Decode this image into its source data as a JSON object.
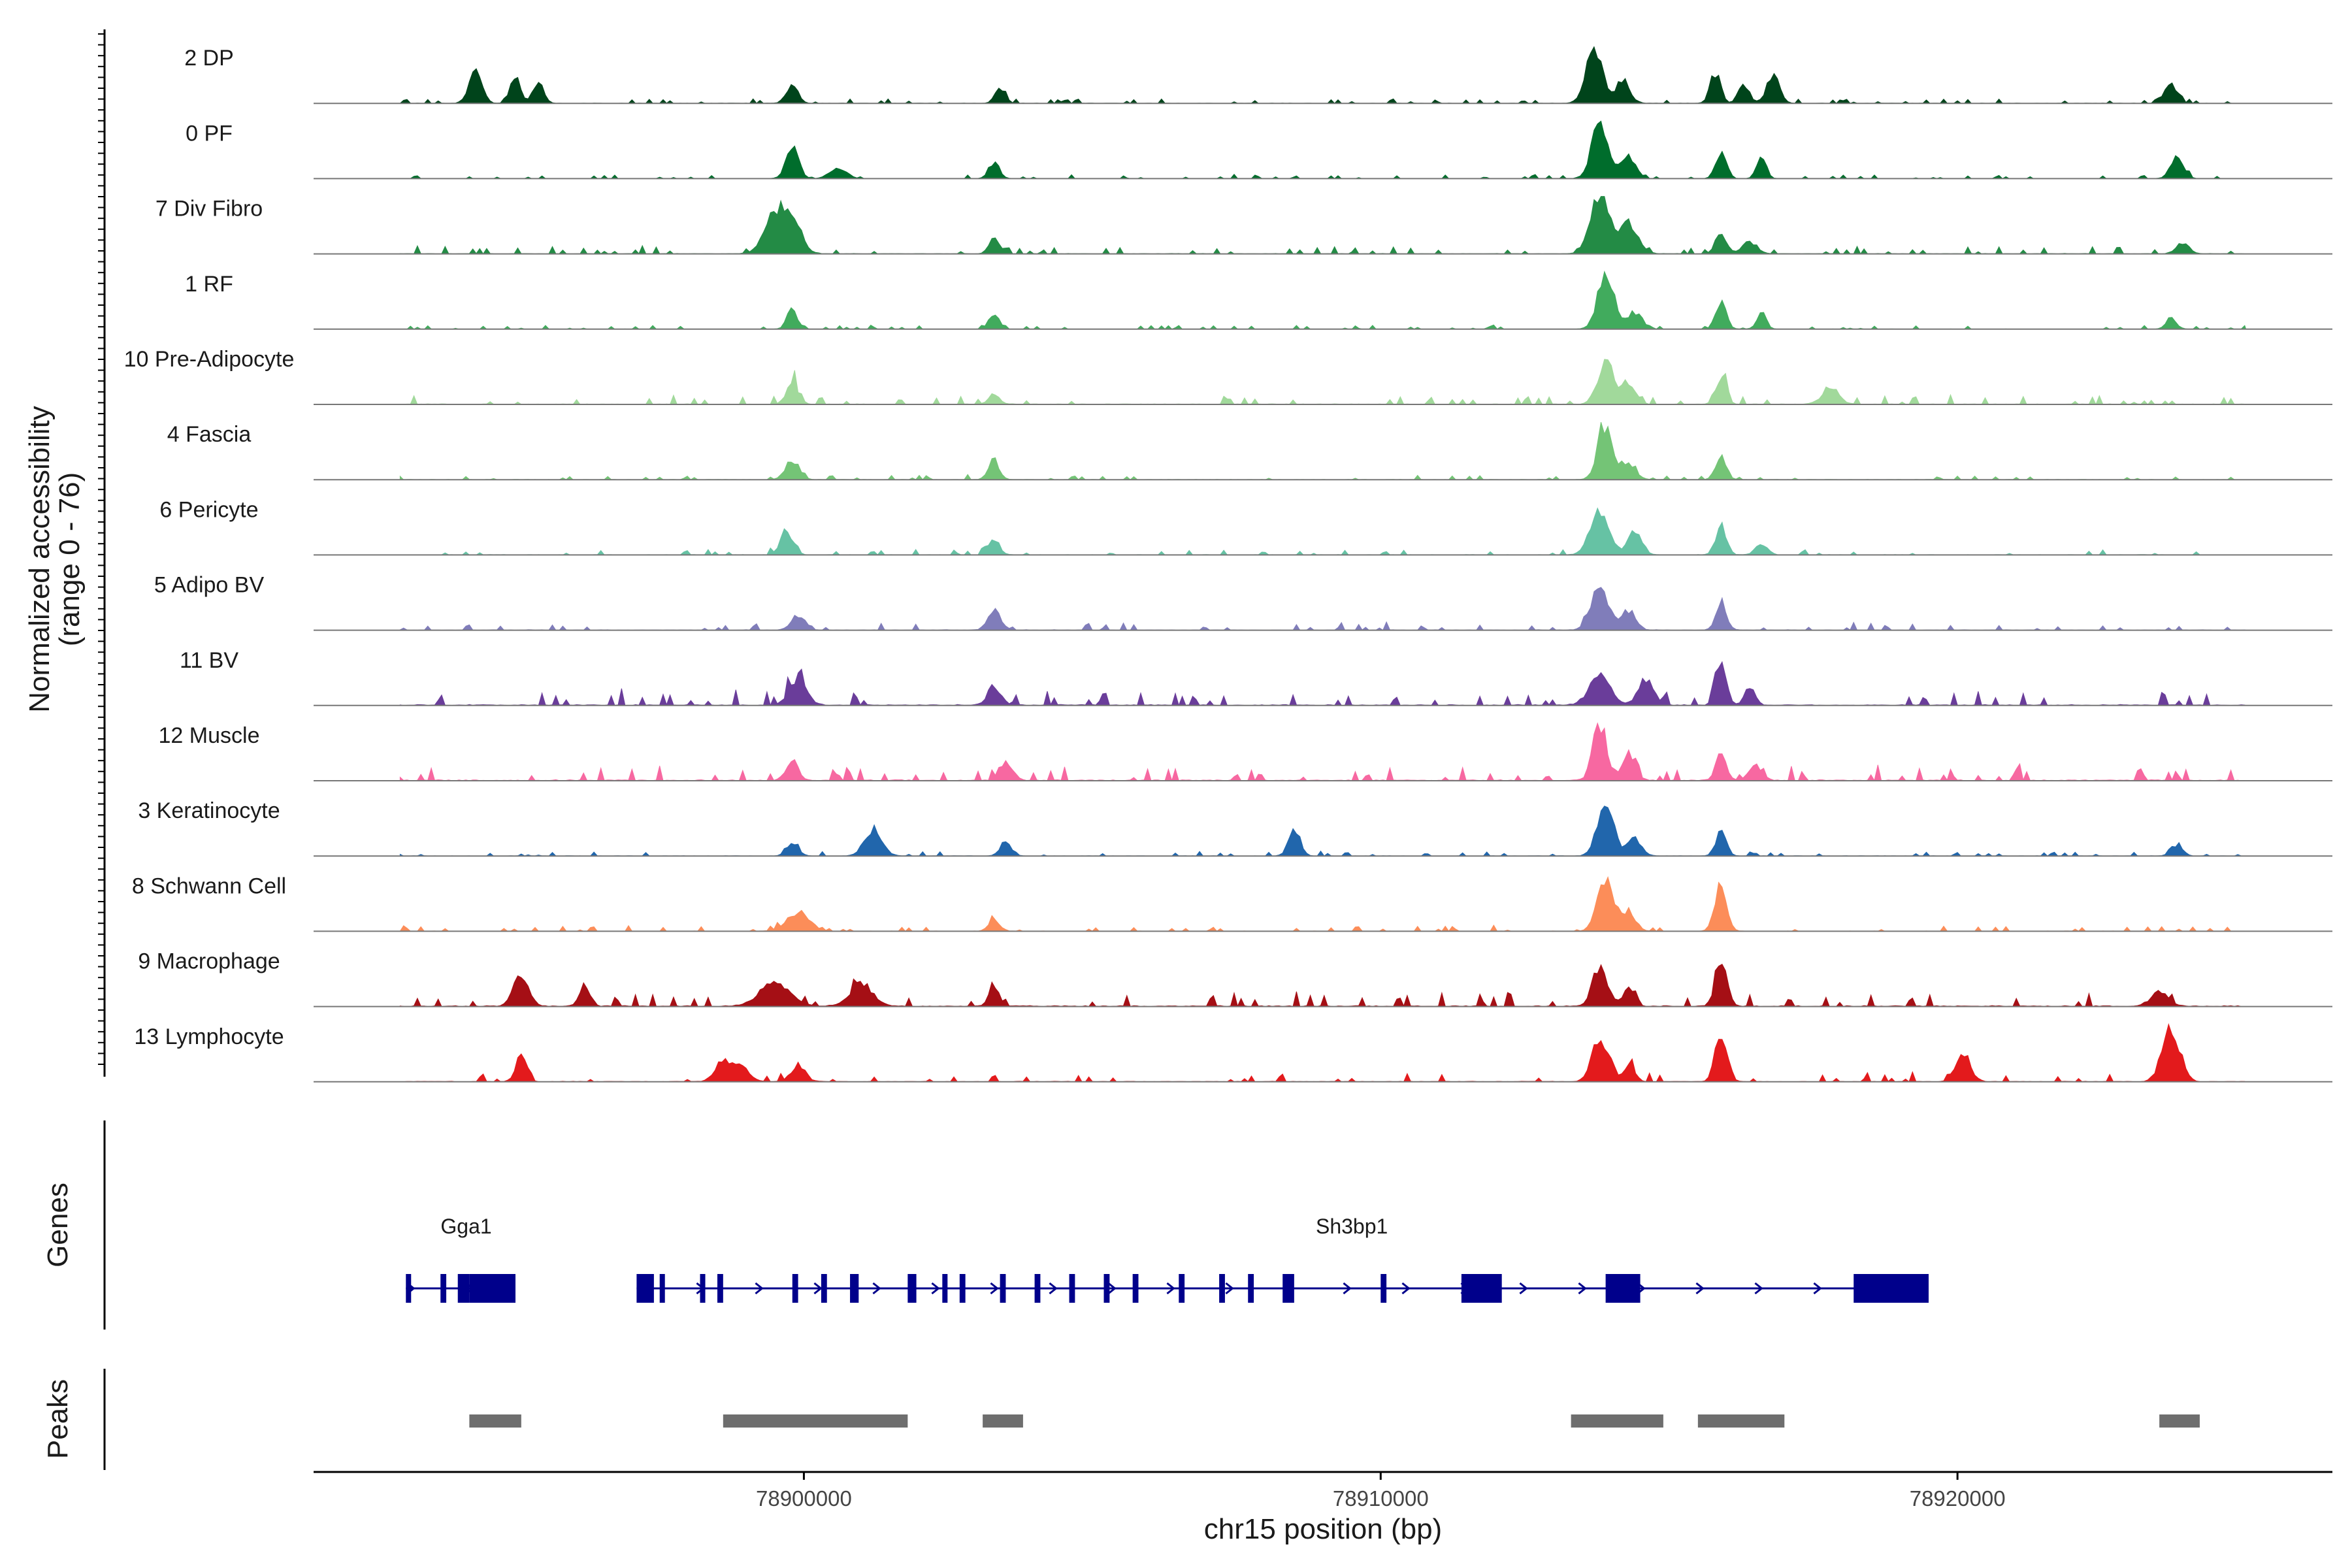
{
  "chart_data": {
    "type": "area",
    "title": "",
    "ylabel_line1": "Normalized accessibility",
    "ylabel_line2": "(range 0 - 76)",
    "ylim": [
      0,
      76
    ],
    "xlabel": "chr15 position (bp)",
    "xlim": [
      78891500,
      78926500
    ],
    "x_ticks": [
      78900000,
      78910000,
      78920000
    ],
    "x_tick_labels": [
      "78900000",
      "78910000",
      "78920000"
    ],
    "data_start": 78893000,
    "data_end": 78925000,
    "tracks": [
      {
        "name": "2 DP",
        "color": "#00441b",
        "peaks": [
          [
            78894300,
            0.6,
            110
          ],
          [
            78895000,
            0.45,
            90
          ],
          [
            78895400,
            0.35,
            90
          ],
          [
            78899800,
            0.35,
            100
          ],
          [
            78903400,
            0.25,
            90
          ],
          [
            78913700,
            1.0,
            140
          ],
          [
            78914200,
            0.4,
            120
          ],
          [
            78915800,
            0.55,
            90
          ],
          [
            78916300,
            0.35,
            90
          ],
          [
            78916800,
            0.5,
            110
          ],
          [
            78923700,
            0.35,
            110
          ]
        ],
        "base": 0.06
      },
      {
        "name": "0 PF",
        "color": "#006d2c",
        "peaks": [
          [
            78899800,
            0.55,
            110
          ],
          [
            78900600,
            0.2,
            140
          ],
          [
            78903300,
            0.3,
            90
          ],
          [
            78913800,
            1.0,
            140
          ],
          [
            78914300,
            0.4,
            120
          ],
          [
            78915900,
            0.5,
            90
          ],
          [
            78916600,
            0.4,
            80
          ],
          [
            78923800,
            0.4,
            110
          ]
        ],
        "base": 0.05
      },
      {
        "name": "7 Div Fibro",
        "color": "#238b45",
        "peaks": [
          [
            78899500,
            0.7,
            180
          ],
          [
            78899800,
            0.55,
            160
          ],
          [
            78903300,
            0.3,
            90
          ],
          [
            78913800,
            1.0,
            160
          ],
          [
            78914300,
            0.55,
            160
          ],
          [
            78915900,
            0.4,
            90
          ],
          [
            78916400,
            0.2,
            130
          ],
          [
            78923900,
            0.2,
            110
          ]
        ],
        "base": 0.1
      },
      {
        "name": "1 RF",
        "color": "#41ab5d",
        "peaks": [
          [
            78899800,
            0.35,
            90
          ],
          [
            78903300,
            0.3,
            90
          ],
          [
            78913900,
            0.95,
            140
          ],
          [
            78914400,
            0.3,
            120
          ],
          [
            78915900,
            0.5,
            90
          ],
          [
            78916600,
            0.3,
            80
          ],
          [
            78923700,
            0.2,
            90
          ]
        ],
        "base": 0.05
      },
      {
        "name": "10 Pre-Adipocyte",
        "color": "#a1d99b",
        "peaks": [
          [
            78899800,
            0.4,
            100
          ],
          [
            78903300,
            0.2,
            90
          ],
          [
            78913900,
            0.75,
            140
          ],
          [
            78914300,
            0.4,
            120
          ],
          [
            78915900,
            0.5,
            90
          ],
          [
            78917800,
            0.25,
            150
          ]
        ],
        "base": 0.12
      },
      {
        "name": "4 Fascia",
        "color": "#74c476",
        "peaks": [
          [
            78899800,
            0.35,
            120
          ],
          [
            78903300,
            0.35,
            90
          ],
          [
            78913900,
            1.0,
            130
          ],
          [
            78914300,
            0.3,
            120
          ],
          [
            78915900,
            0.45,
            90
          ]
        ],
        "base": 0.06
      },
      {
        "name": "6 Pericyte",
        "color": "#66c2a4",
        "peaks": [
          [
            78899700,
            0.4,
            110
          ],
          [
            78903300,
            0.3,
            90
          ],
          [
            78913800,
            0.8,
            160
          ],
          [
            78914400,
            0.4,
            120
          ],
          [
            78915900,
            0.55,
            90
          ],
          [
            78916600,
            0.2,
            100
          ]
        ],
        "base": 0.08
      },
      {
        "name": "5 Adipo BV",
        "color": "#807dba",
        "peaks": [
          [
            78899900,
            0.25,
            120
          ],
          [
            78903300,
            0.35,
            110
          ],
          [
            78913800,
            0.75,
            150
          ],
          [
            78914300,
            0.35,
            120
          ],
          [
            78915900,
            0.5,
            90
          ]
        ],
        "base": 0.1
      },
      {
        "name": "11 BV",
        "color": "#6a3d9a",
        "peaks": [
          [
            78899900,
            0.45,
            150
          ],
          [
            78903300,
            0.35,
            110
          ],
          [
            78913800,
            0.55,
            180
          ],
          [
            78914600,
            0.45,
            130
          ],
          [
            78915900,
            0.8,
            90
          ],
          [
            78916400,
            0.35,
            90
          ]
        ],
        "base": 0.2
      },
      {
        "name": "12 Muscle",
        "color": "#f768a1",
        "peaks": [
          [
            78899800,
            0.4,
            100
          ],
          [
            78903500,
            0.35,
            110
          ],
          [
            78913800,
            1.0,
            120
          ],
          [
            78914300,
            0.5,
            110
          ],
          [
            78915900,
            0.5,
            90
          ],
          [
            78916500,
            0.25,
            120
          ]
        ],
        "base": 0.2
      },
      {
        "name": "3 Keratinocyte",
        "color": "#2166ac",
        "peaks": [
          [
            78899800,
            0.25,
            100
          ],
          [
            78901200,
            0.45,
            150
          ],
          [
            78903500,
            0.25,
            100
          ],
          [
            78908500,
            0.45,
            100
          ],
          [
            78913900,
            0.95,
            140
          ],
          [
            78914400,
            0.3,
            120
          ],
          [
            78915900,
            0.45,
            90
          ],
          [
            78923800,
            0.2,
            100
          ]
        ],
        "base": 0.06
      },
      {
        "name": "8 Schwann Cell",
        "color": "#fc8d59",
        "peaks": [
          [
            78899900,
            0.3,
            200
          ],
          [
            78903300,
            0.2,
            100
          ],
          [
            78913900,
            1.0,
            140
          ],
          [
            78914300,
            0.35,
            120
          ],
          [
            78915900,
            0.9,
            100
          ]
        ],
        "base": 0.07
      },
      {
        "name": "9 Macrophage",
        "color": "#a50f15",
        "peaks": [
          [
            78895100,
            0.55,
            130
          ],
          [
            78896200,
            0.4,
            90
          ],
          [
            78899500,
            0.45,
            250
          ],
          [
            78901000,
            0.4,
            200
          ],
          [
            78903300,
            0.35,
            90
          ],
          [
            78913800,
            0.7,
            130
          ],
          [
            78914300,
            0.35,
            100
          ],
          [
            78915900,
            0.75,
            100
          ],
          [
            78923500,
            0.25,
            150
          ]
        ],
        "base": 0.2
      },
      {
        "name": "13 Lymphocyte",
        "color": "#e31a1c",
        "peaks": [
          [
            78895100,
            0.55,
            90
          ],
          [
            78898600,
            0.35,
            140
          ],
          [
            78898900,
            0.3,
            140
          ],
          [
            78899900,
            0.3,
            120
          ],
          [
            78913800,
            0.85,
            130
          ],
          [
            78914300,
            0.3,
            100
          ],
          [
            78915900,
            0.9,
            100
          ],
          [
            78920100,
            0.45,
            130
          ],
          [
            78923700,
            1.0,
            150
          ]
        ],
        "base": 0.12
      }
    ],
    "genes_label": "Genes",
    "genes": [
      {
        "name": "Gga1",
        "start": 78893100,
        "end": 78895000,
        "strand": "+",
        "exons": [
          [
            78893100,
            78893150
          ],
          [
            78893700,
            78893800
          ],
          [
            78894000,
            78894200
          ],
          [
            78894200,
            78895000
          ]
        ]
      },
      {
        "name": "Sh3bp1",
        "start": 78897100,
        "end": 78919500,
        "strand": "+",
        "exons": [
          [
            78897100,
            78897400
          ],
          [
            78897500,
            78897550
          ],
          [
            78898200,
            78898250
          ],
          [
            78898500,
            78898600
          ],
          [
            78899800,
            78899900
          ],
          [
            78900300,
            78900400
          ],
          [
            78900800,
            78900950
          ],
          [
            78901800,
            78901950
          ],
          [
            78902400,
            78902450
          ],
          [
            78902700,
            78902800
          ],
          [
            78903400,
            78903500
          ],
          [
            78904000,
            78904100
          ],
          [
            78904600,
            78904700
          ],
          [
            78905200,
            78905300
          ],
          [
            78905700,
            78905800
          ],
          [
            78906500,
            78906600
          ],
          [
            78907200,
            78907300
          ],
          [
            78907700,
            78907800
          ],
          [
            78908300,
            78908500
          ],
          [
            78910000,
            78910100
          ],
          [
            78911400,
            78912100
          ],
          [
            78913900,
            78914500
          ],
          [
            78918200,
            78919500
          ]
        ]
      }
    ],
    "peaks_label": "Peaks",
    "peaks": [
      [
        78894200,
        78895100
      ],
      [
        78898600,
        78901800
      ],
      [
        78903100,
        78903800
      ],
      [
        78913300,
        78914900
      ],
      [
        78915500,
        78917000
      ],
      [
        78923500,
        78924200
      ]
    ]
  }
}
